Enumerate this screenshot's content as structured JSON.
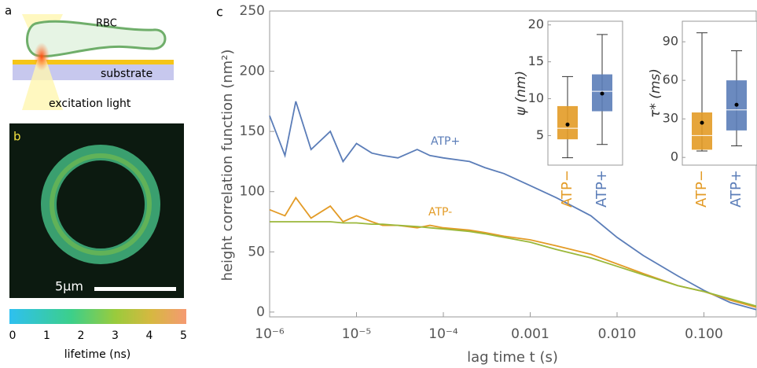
{
  "diagram": {
    "label": "a",
    "cell": "RBC",
    "substrate": "substrate",
    "light": "excitation light"
  },
  "image": {
    "label": "b",
    "scale_bar": "5μm",
    "colorbar_ticks": [
      0,
      1,
      2,
      3,
      4,
      5
    ],
    "colorbar_label": "lifetime (ns)"
  },
  "chart_data": [
    {
      "type": "line",
      "panel": "c",
      "xlabel": "lag time t (s)",
      "ylabel": "height correlation function (nm²)",
      "xscale": "log",
      "xlim": [
        1e-06,
        0.4
      ],
      "ylim": [
        -4,
        250
      ],
      "xticks": [
        {
          "value": 1e-06,
          "label": "10⁻⁶"
        },
        {
          "value": 1e-05,
          "label": "10⁻⁵"
        },
        {
          "value": 0.0001,
          "label": "10⁻⁴"
        },
        0.001,
        {
          "value": 0.01,
          "label": "0.010"
        },
        {
          "value": 0.1,
          "label": "0.100"
        }
      ],
      "yticks": [
        0,
        50,
        100,
        150,
        200,
        250
      ],
      "x": [
        1e-06,
        1.5e-06,
        2e-06,
        3e-06,
        5e-06,
        7e-06,
        1e-05,
        1.5e-05,
        2e-05,
        3e-05,
        5e-05,
        7e-05,
        0.0001,
        0.0002,
        0.0003,
        0.0005,
        0.001,
        0.002,
        0.005,
        0.01,
        0.02,
        0.05,
        0.1,
        0.2,
        0.4
      ],
      "series": [
        {
          "name": "ATP+",
          "color": "#5b7db8",
          "values": [
            163,
            130,
            175,
            135,
            150,
            125,
            140,
            132,
            130,
            128,
            135,
            130,
            128,
            125,
            120,
            115,
            105,
            95,
            80,
            62,
            47,
            30,
            18,
            8,
            2
          ]
        },
        {
          "name": "ATP-",
          "color": "#e39b26",
          "values": [
            85,
            80,
            95,
            78,
            88,
            75,
            80,
            75,
            72,
            72,
            70,
            72,
            70,
            68,
            66,
            63,
            60,
            55,
            48,
            40,
            32,
            22,
            17,
            10,
            4
          ]
        },
        {
          "color": "#9bb83a",
          "values": [
            75,
            75,
            75,
            75,
            75,
            74,
            74,
            73,
            73,
            72,
            71,
            70,
            69,
            67,
            65,
            62,
            58,
            52,
            45,
            38,
            31,
            22,
            17,
            11,
            5
          ]
        }
      ]
    },
    {
      "type": "box",
      "ylabel": "ψ (nm)",
      "ylim": [
        1,
        20.5
      ],
      "yticks": [
        5,
        10,
        15,
        20
      ],
      "categories": [
        "ATP−",
        "ATP+"
      ],
      "colors": [
        "#e39b26",
        "#5b7db8"
      ],
      "min": [
        2,
        3.8
      ],
      "q1": [
        4.5,
        8.3
      ],
      "median": [
        6,
        11
      ],
      "q3": [
        9,
        13.3
      ],
      "max": [
        13,
        18.7
      ],
      "mean": [
        6.5,
        10.7
      ]
    },
    {
      "type": "box",
      "ylabel": "τ* (ms)",
      "ylim": [
        -6,
        106
      ],
      "yticks": [
        0,
        30,
        60,
        90
      ],
      "categories": [
        "ATP−",
        "ATP+"
      ],
      "colors": [
        "#e39b26",
        "#5b7db8"
      ],
      "min": [
        5,
        9
      ],
      "q1": [
        6,
        21
      ],
      "median": [
        17,
        37
      ],
      "q3": [
        35,
        60
      ],
      "max": [
        97,
        83
      ],
      "mean": [
        27,
        41
      ]
    }
  ]
}
